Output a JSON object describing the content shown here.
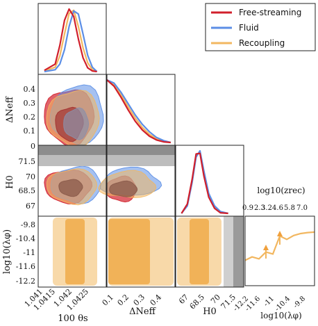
{
  "chart_data": {
    "type": "scatter",
    "legend": {
      "placement": "top-right",
      "entries": [
        {
          "name": "Free-streaming",
          "color": "#d11f2b"
        },
        {
          "name": "Fluid",
          "color": "#5b8ee6"
        },
        {
          "name": "Recoupling",
          "color": "#f2b760"
        }
      ]
    },
    "parameters": [
      {
        "key": "theta",
        "label": "100 θs",
        "ticks": [
          "1.041",
          "1.0415",
          "1.042",
          "1.0425"
        ],
        "range": [
          1.0406,
          1.0428
        ]
      },
      {
        "key": "dneff",
        "label": "ΔNeff",
        "ticks": [
          "0.1",
          "0.2",
          "0.3",
          "0.4"
        ],
        "range": [
          0.0,
          0.48
        ]
      },
      {
        "key": "h0",
        "label": "H0",
        "ticks": [
          "67",
          "68.5",
          "70",
          "71.5"
        ],
        "range": [
          66.2,
          73.2
        ]
      },
      {
        "key": "loglam",
        "label": "log10(λφ)",
        "ticks": [
          "-9.8",
          "-10.4",
          "-11",
          "-11.6",
          "-12.2"
        ],
        "range": [
          -12.5,
          -9.5
        ]
      }
    ],
    "marginals": {
      "theta": {
        "x": [
          1.0408,
          1.04115,
          1.0413,
          1.04145,
          1.0416,
          1.04175,
          1.0419,
          1.04205,
          1.0422,
          1.04235,
          1.0425
        ],
        "free_streaming": [
          0.02,
          0.12,
          0.42,
          0.82,
          1.0,
          0.88,
          0.52,
          0.22,
          0.06,
          0.01,
          0.0
        ],
        "fluid": [
          0.0,
          0.03,
          0.12,
          0.35,
          0.72,
          0.97,
          0.92,
          0.6,
          0.26,
          0.07,
          0.0
        ],
        "recoupling": [
          0.01,
          0.07,
          0.25,
          0.6,
          0.93,
          0.98,
          0.72,
          0.38,
          0.14,
          0.03,
          0.0
        ]
      },
      "dneff": {
        "x": [
          0.0,
          0.05,
          0.1,
          0.15,
          0.2,
          0.25,
          0.3,
          0.35,
          0.4,
          0.45
        ],
        "free_streaming": [
          1.0,
          0.9,
          0.72,
          0.52,
          0.34,
          0.2,
          0.1,
          0.04,
          0.01,
          0.0
        ],
        "fluid": [
          1.0,
          0.95,
          0.8,
          0.62,
          0.44,
          0.29,
          0.17,
          0.08,
          0.03,
          0.0
        ],
        "recoupling": [
          1.0,
          0.92,
          0.76,
          0.57,
          0.39,
          0.24,
          0.13,
          0.06,
          0.02,
          0.0
        ]
      },
      "h0": {
        "x": [
          66.8,
          67.4,
          67.9,
          68.3,
          68.7,
          69.1,
          69.6,
          70.2,
          70.8,
          71.6
        ],
        "free_streaming": [
          0.0,
          0.15,
          0.55,
          0.95,
          0.96,
          0.6,
          0.26,
          0.08,
          0.01,
          0.0
        ],
        "fluid": [
          0.0,
          0.12,
          0.5,
          0.9,
          1.0,
          0.68,
          0.32,
          0.12,
          0.03,
          0.0
        ],
        "recoupling": [
          0.0,
          0.14,
          0.53,
          0.93,
          0.98,
          0.64,
          0.29,
          0.1,
          0.02,
          0.0
        ]
      }
    },
    "top_axis": {
      "label": "log10(zrec)",
      "ticks": [
        "0.9",
        "2.3",
        "3.2",
        "4.6",
        "5.8",
        "7.0"
      ]
    },
    "inset": {
      "xlabel": "log10(λφ)",
      "xticks": [
        "-12.2",
        "-11.6",
        "-11",
        "-10.4",
        "-9.8"
      ],
      "x": [
        -12.5,
        -12.2,
        -11.9,
        -11.6,
        -11.3,
        -11.0,
        -10.7,
        -10.4,
        -10.1,
        -9.8,
        -9.5
      ],
      "y": [
        0.35,
        0.42,
        0.38,
        0.52,
        0.48,
        0.85,
        0.78,
        0.86,
        0.9,
        0.92,
        0.93
      ],
      "arrows_at": [
        -11.6,
        -11.0
      ]
    }
  }
}
